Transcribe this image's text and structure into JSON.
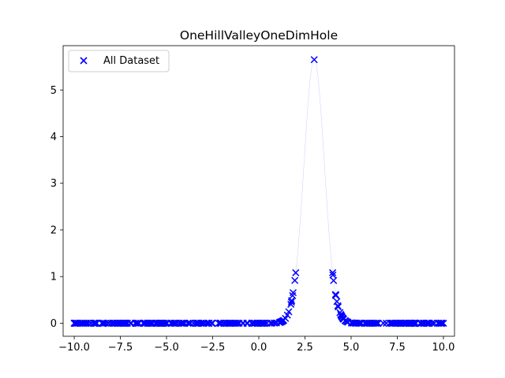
{
  "chart_data": {
    "type": "scatter",
    "title": "OneHillValleyOneDimHole",
    "xlabel": "",
    "ylabel": "",
    "xlim": [
      -10.6,
      10.6
    ],
    "ylim": [
      -0.28,
      5.95
    ],
    "x_ticks": [
      -10.0,
      -7.5,
      -5.0,
      -2.5,
      0.0,
      2.5,
      5.0,
      7.5,
      10.0
    ],
    "x_tick_labels": [
      "−10.0",
      "−7.5",
      "−5.0",
      "−2.5",
      "0.0",
      "2.5",
      "5.0",
      "7.5",
      "10.0"
    ],
    "y_ticks": [
      0,
      1,
      2,
      3,
      4,
      5
    ],
    "y_tick_labels": [
      "0",
      "1",
      "2",
      "3",
      "4",
      "5"
    ],
    "grid": false,
    "legend": {
      "position": "top-left",
      "entries": [
        "All Dataset"
      ]
    },
    "series": [
      {
        "name": "All Dataset",
        "marker": "x",
        "color": "#0000ff",
        "curve": {
          "note_func": "peak",
          "x_range": [
            -10,
            10
          ],
          "peak_x": 3.0,
          "peak_y": 5.65,
          "width": 0.55,
          "hole_range": [
            2.0,
            4.0
          ],
          "marker_count": 400
        }
      }
    ]
  }
}
